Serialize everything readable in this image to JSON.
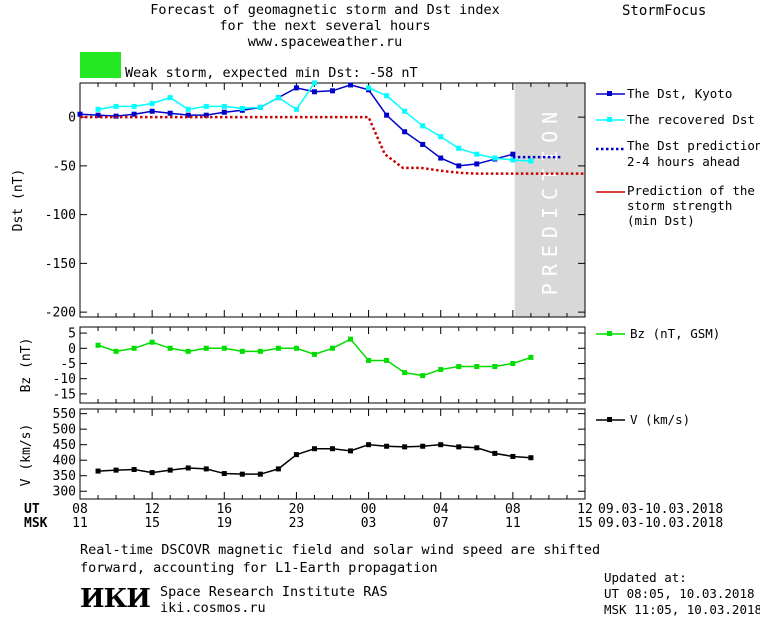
{
  "header": {
    "title_lines": [
      "Forecast of geomagnetic storm and Dst index",
      "for the next several hours",
      "www.spaceweather.ru"
    ],
    "brand": "StormFocus",
    "storm_label": "Weak storm, expected min Dst: -58 nT",
    "storm_color": "#22e822"
  },
  "prediction_text": "PREDICTION",
  "legend": {
    "dst_kyoto": "The Dst, Kyoto",
    "dst_recovered": "The recovered Dst",
    "dst_prediction_lines": [
      "The Dst prediction",
      "2-4 hours ahead"
    ],
    "strength_lines": [
      "Prediction of the",
      "storm strength",
      "(min Dst)"
    ],
    "bz": "Bz (nT, GSM)",
    "v": "V (km/s)"
  },
  "time_axis": {
    "ut_label": "UT",
    "msk_label": "MSK",
    "ut_ticks": [
      "08",
      "12",
      "16",
      "20",
      "00",
      "04",
      "08",
      "12"
    ],
    "msk_ticks": [
      "11",
      "15",
      "19",
      "23",
      "03",
      "07",
      "11",
      "15"
    ],
    "date_range": "09.03-10.03.2018"
  },
  "footer": {
    "note_lines": [
      "Real-time DSCOVR magnetic field and solar wind speed are shifted",
      "forward, accounting for L1-Earth propagation"
    ],
    "logo_text": "ИКИ",
    "org_lines": [
      "Space Research Institute RAS",
      "iki.cosmos.ru"
    ],
    "updated_label": "Updated at:",
    "updated_ut": "UT   08:05, 10.03.2018",
    "updated_msk": "MSK 11:05, 10.03.2018"
  },
  "colors": {
    "kyoto": "#0000cc",
    "recovered": "#00ffff",
    "strength": "#cc0000",
    "bz": "#00dd00",
    "v": "#000000",
    "prediction_zone": "#d8d8d8"
  },
  "chart_data": [
    {
      "type": "line",
      "ylabel": "Dst (nT)",
      "xlim": [
        8,
        36
      ],
      "ylim": [
        -205,
        35
      ],
      "yticks": [
        0,
        -50,
        -100,
        -150,
        -200
      ],
      "ytick_labels": [
        "0",
        "-50",
        "-100",
        "-150",
        "-200"
      ],
      "prediction_zone": [
        32.1,
        36
      ],
      "series": [
        {
          "name": "The Dst, Kyoto",
          "x": [
            8,
            9,
            10,
            11,
            12,
            13,
            14,
            15,
            16,
            17,
            18,
            19,
            20,
            21,
            22,
            23,
            24,
            25,
            26,
            27,
            28,
            29,
            30,
            31,
            32
          ],
          "y": [
            3,
            2,
            1,
            3,
            6,
            4,
            2,
            2,
            5,
            7,
            10,
            20,
            30,
            26,
            27,
            33,
            28,
            2,
            -15,
            -28,
            -42,
            -50,
            -48,
            -43,
            -38
          ]
        },
        {
          "name": "The recovered Dst",
          "x": [
            9,
            10,
            11,
            12,
            13,
            14,
            15,
            16,
            17,
            18,
            19,
            20,
            21
          ],
          "y": [
            8,
            11,
            11,
            14,
            20,
            8,
            11,
            11,
            9,
            10,
            20,
            8,
            35
          ]
        },
        {
          "name": "The recovered Dst",
          "x": [
            24,
            25,
            26,
            27,
            28,
            29,
            30,
            31,
            32,
            33
          ],
          "y": [
            30,
            22,
            6,
            -9,
            -20,
            -32,
            -38,
            -42,
            -44,
            -45
          ]
        },
        {
          "name": "The Dst prediction 2-4 hours ahead",
          "x": [
            32,
            34.7
          ],
          "y": [
            -41,
            -41
          ]
        },
        {
          "name": "Prediction of the storm strength (min Dst)",
          "x": [
            8,
            24,
            24.9,
            25.9,
            26.9,
            28,
            29,
            30,
            31,
            32,
            36
          ],
          "y": [
            0,
            0,
            -38,
            -52,
            -52,
            -55,
            -57,
            -58,
            -58,
            -58,
            -58
          ]
        }
      ]
    },
    {
      "type": "line",
      "ylabel": "Bz (nT)",
      "xlim": [
        8,
        36
      ],
      "ylim": [
        -18,
        7
      ],
      "yticks": [
        5,
        0,
        -5,
        -10,
        -15
      ],
      "ytick_labels": [
        "5",
        "0",
        "-5",
        "-10",
        "-15"
      ],
      "series": [
        {
          "name": "Bz (nT, GSM)",
          "x": [
            9,
            10,
            11,
            12,
            13,
            14,
            15,
            16,
            17,
            18,
            19,
            20,
            21,
            22,
            23,
            24,
            25,
            26,
            27,
            28,
            29,
            30,
            31,
            32,
            33
          ],
          "y": [
            1,
            -1,
            0,
            2,
            0,
            -1,
            0,
            0,
            -1,
            -1,
            0,
            0,
            -2,
            0,
            3,
            -4,
            -4,
            -8,
            -9,
            -7,
            -6,
            -6,
            -6,
            -5,
            -3
          ]
        }
      ]
    },
    {
      "type": "line",
      "ylabel": "V (km/s)",
      "xlim": [
        8,
        36
      ],
      "ylim": [
        275,
        565
      ],
      "yticks": [
        550,
        500,
        450,
        400,
        350,
        300
      ],
      "ytick_labels": [
        "550",
        "500",
        "450",
        "400",
        "350",
        "300"
      ],
      "series": [
        {
          "name": "V (km/s)",
          "x": [
            9,
            10,
            11,
            12,
            13,
            14,
            15,
            16,
            17,
            18,
            19,
            20,
            21,
            22,
            23,
            24,
            25,
            26,
            27,
            28,
            29,
            30,
            31,
            32,
            33
          ],
          "y": [
            365,
            368,
            370,
            360,
            368,
            375,
            372,
            357,
            355,
            355,
            372,
            418,
            437,
            437,
            430,
            450,
            445,
            443,
            445,
            450,
            443,
            440,
            422,
            412,
            408
          ]
        }
      ]
    }
  ]
}
